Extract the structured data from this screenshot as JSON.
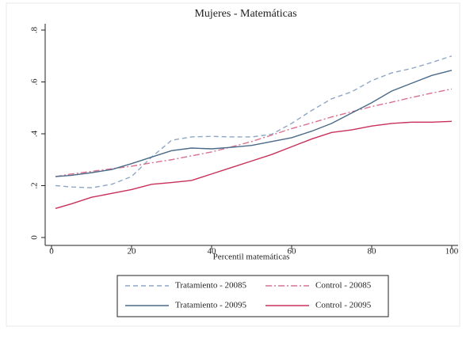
{
  "chart_data": {
    "type": "line",
    "title": "Mujeres - Matemáticas",
    "x_label": "Percentil matemáticas",
    "x": [
      1,
      5,
      10,
      15,
      20,
      25,
      30,
      35,
      40,
      45,
      50,
      55,
      60,
      65,
      70,
      75,
      80,
      85,
      90,
      95,
      100
    ],
    "xlim": [
      0,
      100
    ],
    "xticks": [
      0,
      20,
      40,
      60,
      80,
      100
    ],
    "ylim": [
      0,
      0.8
    ],
    "yticks": [
      0,
      {
        "value": 0.2,
        "label": ".2"
      },
      {
        "value": 0.4,
        "label": ".4"
      },
      {
        "value": 0.6,
        "label": ".6"
      },
      {
        "value": 0.8,
        "label": ".8"
      }
    ],
    "series": [
      {
        "name": "Tratamiento - 20085",
        "color": "#8ea6c4",
        "style": "dash",
        "values": [
          0.2,
          0.195,
          0.192,
          0.205,
          0.235,
          0.31,
          0.375,
          0.388,
          0.39,
          0.388,
          0.388,
          0.398,
          0.44,
          0.49,
          0.535,
          0.562,
          0.605,
          0.635,
          0.652,
          0.675,
          0.7
        ]
      },
      {
        "name": "Control - 20085",
        "color": "#d9708f",
        "style": "dashdot",
        "values": [
          0.235,
          0.245,
          0.255,
          0.265,
          0.275,
          0.288,
          0.3,
          0.315,
          0.33,
          0.35,
          0.37,
          0.395,
          0.42,
          0.442,
          0.465,
          0.485,
          0.505,
          0.522,
          0.54,
          0.557,
          0.573
        ]
      },
      {
        "name": "Tratamiento - 20095",
        "color": "#4a6a88",
        "style": "solid",
        "values": [
          0.235,
          0.24,
          0.25,
          0.262,
          0.285,
          0.31,
          0.335,
          0.345,
          0.342,
          0.348,
          0.355,
          0.37,
          0.385,
          0.41,
          0.44,
          0.48,
          0.52,
          0.565,
          0.595,
          0.625,
          0.645
        ]
      },
      {
        "name": "Control - 20095",
        "color": "#c8305a",
        "style": "solid",
        "values": [
          0.112,
          0.13,
          0.155,
          0.17,
          0.185,
          0.205,
          0.212,
          0.22,
          0.245,
          0.27,
          0.295,
          0.32,
          0.35,
          0.38,
          0.405,
          0.415,
          0.43,
          0.44,
          0.445,
          0.445,
          0.448
        ]
      }
    ]
  }
}
